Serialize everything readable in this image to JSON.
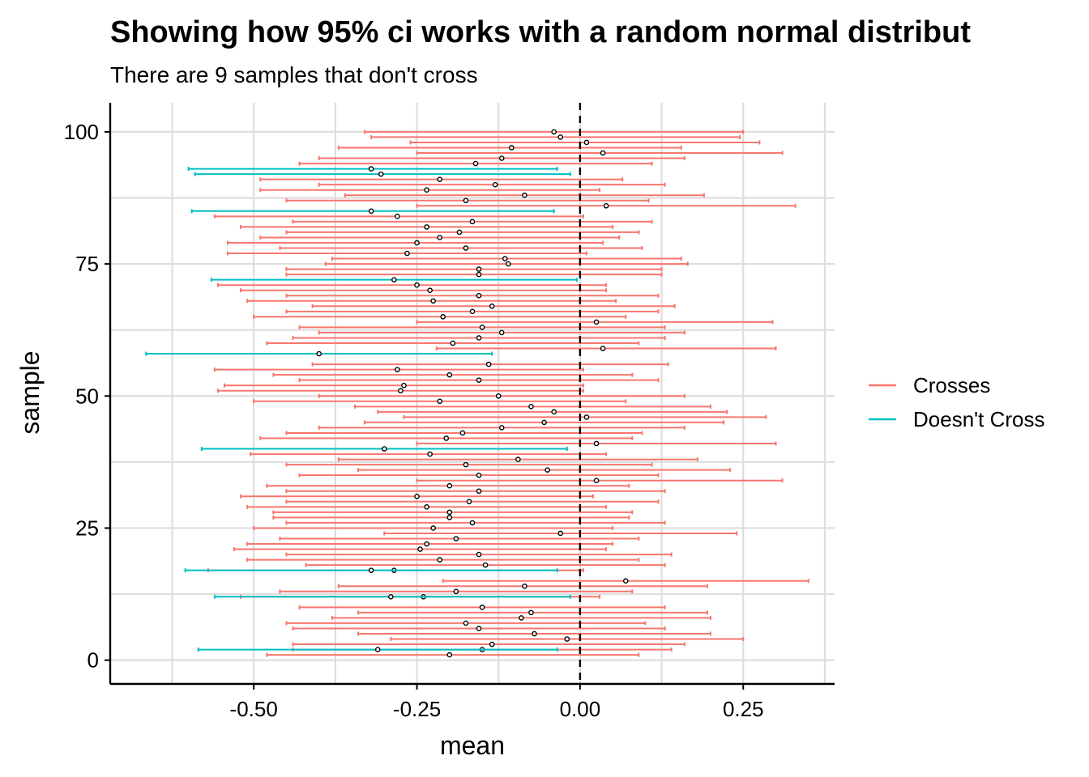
{
  "chart_data": {
    "type": "interval",
    "title": "Showing how 95% ci works with a random normal distribut",
    "subtitle": "There are 9 samples that don't cross",
    "xlabel": "mean",
    "ylabel": "sample",
    "xlim": [
      -0.72,
      0.39
    ],
    "ylim": [
      -4.5,
      105.5
    ],
    "x_ticks": [
      -0.5,
      -0.25,
      0.0,
      0.25
    ],
    "x_tick_labels": [
      "-0.50",
      "-0.25",
      "0.00",
      "0.25"
    ],
    "y_ticks": [
      0,
      25,
      50,
      75,
      100
    ],
    "y_tick_labels": [
      "0",
      "25",
      "50",
      "75",
      "100"
    ],
    "reference_line": 0,
    "legend": [
      {
        "label": "Crosses",
        "color": "#F8766D"
      },
      {
        "label": "Doesn't Cross",
        "color": "#00BFC4"
      }
    ],
    "series": [
      {
        "name": "Crosses",
        "color": "#F8766D",
        "points": [
          {
            "sample": 1,
            "mean": -0.2,
            "lower": -0.48,
            "upper": 0.09
          },
          {
            "sample": 2,
            "mean": -0.15,
            "lower": -0.44,
            "upper": 0.14
          },
          {
            "sample": 3,
            "mean": -0.135,
            "lower": -0.44,
            "upper": 0.16
          },
          {
            "sample": 4,
            "mean": -0.02,
            "lower": -0.29,
            "upper": 0.25
          },
          {
            "sample": 5,
            "mean": -0.07,
            "lower": -0.34,
            "upper": 0.2
          },
          {
            "sample": 6,
            "mean": -0.155,
            "lower": -0.44,
            "upper": 0.13
          },
          {
            "sample": 7,
            "mean": -0.175,
            "lower": -0.45,
            "upper": 0.1
          },
          {
            "sample": 8,
            "mean": -0.09,
            "lower": -0.38,
            "upper": 0.2
          },
          {
            "sample": 9,
            "mean": -0.075,
            "lower": -0.34,
            "upper": 0.195
          },
          {
            "sample": 10,
            "mean": -0.15,
            "lower": -0.43,
            "upper": 0.13
          },
          {
            "sample": 12,
            "mean": -0.24,
            "lower": -0.52,
            "upper": 0.03
          },
          {
            "sample": 13,
            "mean": -0.19,
            "lower": -0.46,
            "upper": 0.08
          },
          {
            "sample": 14,
            "mean": -0.085,
            "lower": -0.37,
            "upper": 0.195
          },
          {
            "sample": 15,
            "mean": 0.07,
            "lower": -0.21,
            "upper": 0.35
          },
          {
            "sample": 17,
            "mean": -0.285,
            "lower": -0.57,
            "upper": 0.005
          },
          {
            "sample": 18,
            "mean": -0.145,
            "lower": -0.42,
            "upper": 0.13
          },
          {
            "sample": 19,
            "mean": -0.215,
            "lower": -0.51,
            "upper": 0.09
          },
          {
            "sample": 20,
            "mean": -0.155,
            "lower": -0.45,
            "upper": 0.14
          },
          {
            "sample": 21,
            "mean": -0.245,
            "lower": -0.53,
            "upper": 0.04
          },
          {
            "sample": 22,
            "mean": -0.235,
            "lower": -0.51,
            "upper": 0.05
          },
          {
            "sample": 23,
            "mean": -0.19,
            "lower": -0.46,
            "upper": 0.09
          },
          {
            "sample": 24,
            "mean": -0.03,
            "lower": -0.3,
            "upper": 0.24
          },
          {
            "sample": 25,
            "mean": -0.225,
            "lower": -0.5,
            "upper": 0.05
          },
          {
            "sample": 26,
            "mean": -0.165,
            "lower": -0.45,
            "upper": 0.13
          },
          {
            "sample": 27,
            "mean": -0.2,
            "lower": -0.47,
            "upper": 0.075
          },
          {
            "sample": 28,
            "mean": -0.2,
            "lower": -0.47,
            "upper": 0.08
          },
          {
            "sample": 29,
            "mean": -0.235,
            "lower": -0.51,
            "upper": 0.04
          },
          {
            "sample": 30,
            "mean": -0.17,
            "lower": -0.45,
            "upper": 0.12
          },
          {
            "sample": 31,
            "mean": -0.25,
            "lower": -0.52,
            "upper": 0.02
          },
          {
            "sample": 32,
            "mean": -0.155,
            "lower": -0.45,
            "upper": 0.13
          },
          {
            "sample": 33,
            "mean": -0.2,
            "lower": -0.48,
            "upper": 0.075
          },
          {
            "sample": 34,
            "mean": 0.025,
            "lower": -0.25,
            "upper": 0.31
          },
          {
            "sample": 35,
            "mean": -0.155,
            "lower": -0.43,
            "upper": 0.12
          },
          {
            "sample": 36,
            "mean": -0.05,
            "lower": -0.34,
            "upper": 0.23
          },
          {
            "sample": 37,
            "mean": -0.175,
            "lower": -0.45,
            "upper": 0.11
          },
          {
            "sample": 38,
            "mean": -0.095,
            "lower": -0.37,
            "upper": 0.18
          },
          {
            "sample": 39,
            "mean": -0.23,
            "lower": -0.505,
            "upper": 0.04
          },
          {
            "sample": 41,
            "mean": 0.025,
            "lower": -0.25,
            "upper": 0.3
          },
          {
            "sample": 42,
            "mean": -0.205,
            "lower": -0.49,
            "upper": 0.08
          },
          {
            "sample": 43,
            "mean": -0.18,
            "lower": -0.45,
            "upper": 0.095
          },
          {
            "sample": 44,
            "mean": -0.12,
            "lower": -0.4,
            "upper": 0.16
          },
          {
            "sample": 45,
            "mean": -0.055,
            "lower": -0.33,
            "upper": 0.22
          },
          {
            "sample": 46,
            "mean": 0.01,
            "lower": -0.27,
            "upper": 0.285
          },
          {
            "sample": 47,
            "mean": -0.04,
            "lower": -0.31,
            "upper": 0.225
          },
          {
            "sample": 48,
            "mean": -0.075,
            "lower": -0.345,
            "upper": 0.2
          },
          {
            "sample": 49,
            "mean": -0.215,
            "lower": -0.5,
            "upper": 0.07
          },
          {
            "sample": 50,
            "mean": -0.125,
            "lower": -0.4,
            "upper": 0.16
          },
          {
            "sample": 51,
            "mean": -0.275,
            "lower": -0.555,
            "upper": 0.005
          },
          {
            "sample": 52,
            "mean": -0.27,
            "lower": -0.545,
            "upper": 0.005
          },
          {
            "sample": 53,
            "mean": -0.155,
            "lower": -0.43,
            "upper": 0.12
          },
          {
            "sample": 54,
            "mean": -0.2,
            "lower": -0.47,
            "upper": 0.08
          },
          {
            "sample": 55,
            "mean": -0.28,
            "lower": -0.56,
            "upper": 0.005
          },
          {
            "sample": 56,
            "mean": -0.14,
            "lower": -0.41,
            "upper": 0.135
          },
          {
            "sample": 59,
            "mean": 0.035,
            "lower": -0.22,
            "upper": 0.3
          },
          {
            "sample": 60,
            "mean": -0.195,
            "lower": -0.48,
            "upper": 0.09
          },
          {
            "sample": 61,
            "mean": -0.155,
            "lower": -0.44,
            "upper": 0.13
          },
          {
            "sample": 62,
            "mean": -0.12,
            "lower": -0.4,
            "upper": 0.16
          },
          {
            "sample": 63,
            "mean": -0.15,
            "lower": -0.43,
            "upper": 0.13
          },
          {
            "sample": 64,
            "mean": 0.025,
            "lower": -0.25,
            "upper": 0.295
          },
          {
            "sample": 65,
            "mean": -0.21,
            "lower": -0.5,
            "upper": 0.07
          },
          {
            "sample": 66,
            "mean": -0.165,
            "lower": -0.45,
            "upper": 0.12
          },
          {
            "sample": 67,
            "mean": -0.135,
            "lower": -0.41,
            "upper": 0.145
          },
          {
            "sample": 68,
            "mean": -0.225,
            "lower": -0.51,
            "upper": 0.055
          },
          {
            "sample": 69,
            "mean": -0.155,
            "lower": -0.45,
            "upper": 0.12
          },
          {
            "sample": 70,
            "mean": -0.23,
            "lower": -0.52,
            "upper": 0.04
          },
          {
            "sample": 71,
            "mean": -0.25,
            "lower": -0.555,
            "upper": 0.04
          },
          {
            "sample": 73,
            "mean": -0.155,
            "lower": -0.45,
            "upper": 0.125
          },
          {
            "sample": 74,
            "mean": -0.155,
            "lower": -0.45,
            "upper": 0.125
          },
          {
            "sample": 75,
            "mean": -0.11,
            "lower": -0.39,
            "upper": 0.165
          },
          {
            "sample": 76,
            "mean": -0.115,
            "lower": -0.38,
            "upper": 0.155
          },
          {
            "sample": 77,
            "mean": -0.265,
            "lower": -0.54,
            "upper": 0.01
          },
          {
            "sample": 78,
            "mean": -0.175,
            "lower": -0.46,
            "upper": 0.095
          },
          {
            "sample": 79,
            "mean": -0.25,
            "lower": -0.54,
            "upper": 0.035
          },
          {
            "sample": 80,
            "mean": -0.215,
            "lower": -0.49,
            "upper": 0.06
          },
          {
            "sample": 81,
            "mean": -0.185,
            "lower": -0.45,
            "upper": 0.09
          },
          {
            "sample": 82,
            "mean": -0.235,
            "lower": -0.52,
            "upper": 0.05
          },
          {
            "sample": 83,
            "mean": -0.165,
            "lower": -0.44,
            "upper": 0.11
          },
          {
            "sample": 84,
            "mean": -0.28,
            "lower": -0.56,
            "upper": 0.005
          },
          {
            "sample": 86,
            "mean": 0.04,
            "lower": -0.25,
            "upper": 0.33
          },
          {
            "sample": 87,
            "mean": -0.175,
            "lower": -0.45,
            "upper": 0.105
          },
          {
            "sample": 88,
            "mean": -0.085,
            "lower": -0.36,
            "upper": 0.19
          },
          {
            "sample": 89,
            "mean": -0.235,
            "lower": -0.49,
            "upper": 0.03
          },
          {
            "sample": 90,
            "mean": -0.13,
            "lower": -0.4,
            "upper": 0.13
          },
          {
            "sample": 91,
            "mean": -0.215,
            "lower": -0.49,
            "upper": 0.065
          },
          {
            "sample": 94,
            "mean": -0.16,
            "lower": -0.43,
            "upper": 0.11
          },
          {
            "sample": 95,
            "mean": -0.12,
            "lower": -0.4,
            "upper": 0.16
          },
          {
            "sample": 96,
            "mean": 0.035,
            "lower": -0.25,
            "upper": 0.31
          },
          {
            "sample": 97,
            "mean": -0.105,
            "lower": -0.37,
            "upper": 0.155
          },
          {
            "sample": 98,
            "mean": 0.01,
            "lower": -0.26,
            "upper": 0.275
          },
          {
            "sample": 99,
            "mean": -0.03,
            "lower": -0.32,
            "upper": 0.245
          },
          {
            "sample": 100,
            "mean": -0.04,
            "lower": -0.33,
            "upper": 0.25
          }
        ]
      },
      {
        "name": "Doesn't Cross",
        "color": "#00BFC4",
        "points": [
          {
            "sample": 2,
            "mean": -0.31,
            "lower": -0.585,
            "upper": -0.035
          },
          {
            "sample": 12,
            "mean": -0.29,
            "lower": -0.56,
            "upper": -0.015
          },
          {
            "sample": 17,
            "mean": -0.32,
            "lower": -0.605,
            "upper": -0.035
          },
          {
            "sample": 40,
            "mean": -0.3,
            "lower": -0.58,
            "upper": -0.02
          },
          {
            "sample": 58,
            "mean": -0.4,
            "lower": -0.665,
            "upper": -0.135
          },
          {
            "sample": 72,
            "mean": -0.285,
            "lower": -0.565,
            "upper": -0.005
          },
          {
            "sample": 85,
            "mean": -0.32,
            "lower": -0.595,
            "upper": -0.04
          },
          {
            "sample": 92,
            "mean": -0.305,
            "lower": -0.59,
            "upper": -0.015
          },
          {
            "sample": 93,
            "mean": -0.32,
            "lower": -0.6,
            "upper": -0.035
          }
        ]
      }
    ]
  }
}
